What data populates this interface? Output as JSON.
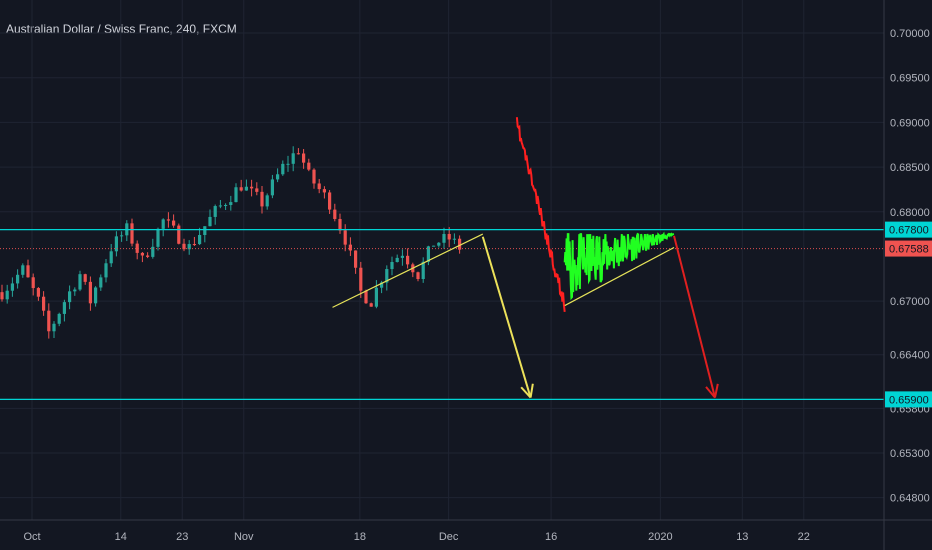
{
  "header": {
    "title": "Australian Dollar / Swiss Franc, 240, FXCM"
  },
  "colors": {
    "background": "#131722",
    "grid": "#1f2432",
    "candle_up": "#26a69a",
    "candle_down": "#ef5350",
    "horizontal_line": "#00d4d4",
    "price_line": "#e05050",
    "trend_line": "#e6e35a",
    "arrow_1": "#ece15a",
    "arrow_2": "#e02020",
    "projection_red": "#ff2020",
    "projection_green": "#21ff21"
  },
  "chart_data": {
    "type": "candlestick",
    "title": "Australian Dollar / Swiss Franc, 240, FXCM",
    "x_ticks": [
      "Oct",
      "14",
      "23",
      "Nov",
      "18",
      "Dec",
      "16",
      "2020",
      "13",
      "22"
    ],
    "y_ticks": [
      "0.70000",
      "0.69500",
      "0.69000",
      "0.68500",
      "0.68000",
      "0.67000",
      "0.66400",
      "0.65800",
      "0.65300",
      "0.64800"
    ],
    "ylim": [
      0.6455,
      0.7037
    ],
    "grid": true,
    "price_labels": [
      {
        "label": "0.67800",
        "value": 0.678,
        "style": "horizontal_line"
      },
      {
        "label": "0.67588",
        "value": 0.67588,
        "style": "price_line"
      },
      {
        "label": "0.65900",
        "value": 0.659,
        "style": "horizontal_line"
      }
    ],
    "annotations": {
      "horizontal_lines": [
        0.678,
        0.659
      ],
      "current_price": 0.67588,
      "trend_lines": [
        {
          "from": [
            "Nov 14",
            0.6693
          ],
          "to": [
            "Dec 6",
            0.6775
          ]
        },
        {
          "from": [
            "Dec 18",
            0.6695
          ],
          "to": [
            "Jan 3",
            0.676
          ]
        }
      ],
      "arrows": [
        {
          "from": [
            "Dec 6",
            0.6772
          ],
          "to": [
            "Dec 13",
            0.6592
          ],
          "color": "yellow"
        },
        {
          "from": [
            "Jan 3",
            0.6773
          ],
          "to": [
            "Jan 9",
            0.6592
          ],
          "color": "red"
        }
      ],
      "projection": [
        {
          "segment": "drop",
          "from": [
            "Dec 11",
            0.6898
          ],
          "to": [
            "Dec 18",
            0.6695
          ],
          "color": "red"
        },
        {
          "segment": "ascending triangle",
          "from": [
            "Dec 18",
            0.6695
          ],
          "to": [
            "Jan 3",
            0.6775
          ],
          "color": "green"
        }
      ]
    }
  }
}
